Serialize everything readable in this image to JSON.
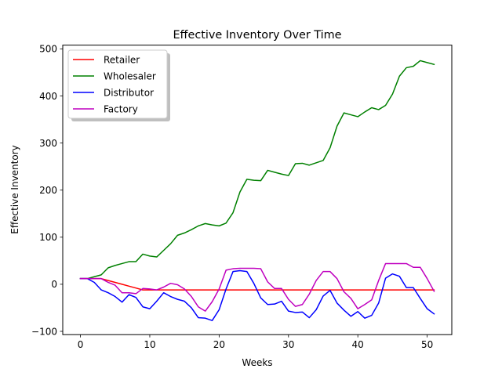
{
  "chart_data": {
    "type": "line",
    "title": "Effective Inventory Over Time",
    "xlabel": "Weeks",
    "ylabel": "Effective Inventory",
    "xlim": [
      -2.55,
      53.55
    ],
    "ylim": [
      -107,
      508
    ],
    "xticks": [
      0,
      10,
      20,
      30,
      40,
      50
    ],
    "yticks": [
      -100,
      0,
      100,
      200,
      300,
      400,
      500
    ],
    "grid": false,
    "legend_placement": "upper-left",
    "x": [
      0,
      1,
      2,
      3,
      4,
      5,
      6,
      7,
      8,
      9,
      10,
      11,
      12,
      13,
      14,
      15,
      16,
      17,
      18,
      19,
      20,
      21,
      22,
      23,
      24,
      25,
      26,
      27,
      28,
      29,
      30,
      31,
      32,
      33,
      34,
      35,
      36,
      37,
      38,
      39,
      40,
      41,
      42,
      43,
      44,
      45,
      46,
      47,
      48,
      49,
      50,
      51
    ],
    "series": [
      {
        "name": "Retailer",
        "color": "#ff0000",
        "values": [
          12,
          12,
          12,
          12,
          8,
          4,
          0,
          -4,
          -8,
          -12,
          -12,
          -12,
          -12,
          -12,
          -12,
          -12,
          -12,
          -12,
          -12,
          -12,
          -12,
          -12,
          -12,
          -12,
          -12,
          -12,
          -12,
          -12,
          -12,
          -12,
          -12,
          -12,
          -12,
          -12,
          -12,
          -12,
          -12,
          -12,
          -12,
          -12,
          -12,
          -12,
          -12,
          -12,
          -12,
          -12,
          -12,
          -12,
          -12,
          -12,
          -12,
          -12
        ]
      },
      {
        "name": "Wholesaler",
        "color": "#008000",
        "values": [
          12,
          12,
          16,
          20,
          35,
          40,
          44,
          48,
          48,
          64,
          60,
          58,
          72,
          86,
          104,
          109,
          116,
          124,
          129,
          126,
          124,
          130,
          152,
          196,
          223,
          221,
          220,
          242,
          238,
          234,
          231,
          256,
          257,
          253,
          258,
          263,
          290,
          336,
          364,
          360,
          356,
          366,
          375,
          371,
          380,
          404,
          442,
          460,
          463,
          475,
          471,
          467
        ]
      },
      {
        "name": "Distributor",
        "color": "#0000ff",
        "values": [
          12,
          12,
          4,
          -12,
          -18,
          -26,
          -38,
          -22,
          -28,
          -48,
          -52,
          -36,
          -18,
          -26,
          -32,
          -36,
          -50,
          -71,
          -72,
          -77,
          -54,
          -10,
          27,
          29,
          27,
          2,
          -29,
          -43,
          -42,
          -36,
          -57,
          -60,
          -59,
          -71,
          -54,
          -25,
          -13,
          -40,
          -55,
          -68,
          -58,
          -72,
          -66,
          -40,
          13,
          22,
          17,
          -7,
          -7,
          -30,
          -52,
          -63
        ]
      },
      {
        "name": "Factory",
        "color": "#bf00bf",
        "values": [
          12,
          12,
          12,
          12,
          4,
          -2,
          -18,
          -18,
          -20,
          -9,
          -10,
          -12,
          -6,
          2,
          -1,
          -10,
          -26,
          -48,
          -57,
          -37,
          -10,
          30,
          33,
          34,
          34,
          34,
          33,
          5,
          -9,
          -9,
          -32,
          -47,
          -43,
          -21,
          8,
          27,
          27,
          12,
          -16,
          -30,
          -52,
          -43,
          -33,
          8,
          44,
          44,
          44,
          44,
          36,
          36,
          12,
          -15
        ]
      }
    ]
  }
}
